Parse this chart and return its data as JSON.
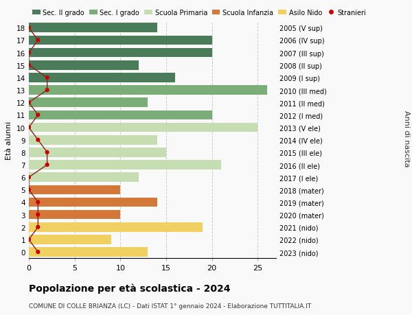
{
  "ages": [
    18,
    17,
    16,
    15,
    14,
    13,
    12,
    11,
    10,
    9,
    8,
    7,
    6,
    5,
    4,
    3,
    2,
    1,
    0
  ],
  "years": [
    "2005 (V sup)",
    "2006 (IV sup)",
    "2007 (III sup)",
    "2008 (II sup)",
    "2009 (I sup)",
    "2010 (III med)",
    "2011 (II med)",
    "2012 (I med)",
    "2013 (V ele)",
    "2014 (IV ele)",
    "2015 (III ele)",
    "2016 (II ele)",
    "2017 (I ele)",
    "2018 (mater)",
    "2019 (mater)",
    "2020 (mater)",
    "2021 (nido)",
    "2022 (nido)",
    "2023 (nido)"
  ],
  "bar_values": [
    14,
    20,
    20,
    12,
    16,
    26,
    13,
    20,
    25,
    14,
    15,
    21,
    12,
    10,
    14,
    10,
    19,
    9,
    13
  ],
  "bar_colors": [
    "#4a7c59",
    "#4a7c59",
    "#4a7c59",
    "#4a7c59",
    "#4a7c59",
    "#7aad78",
    "#7aad78",
    "#7aad78",
    "#c5ddb0",
    "#c5ddb0",
    "#c5ddb0",
    "#c5ddb0",
    "#c5ddb0",
    "#d4783a",
    "#d4783a",
    "#d4783a",
    "#f0d060",
    "#f0d060",
    "#f0d060"
  ],
  "stranieri_values": [
    0,
    1,
    0,
    0,
    2,
    2,
    0,
    1,
    0,
    1,
    2,
    2,
    0,
    0,
    1,
    1,
    1,
    0,
    1
  ],
  "legend_labels": [
    "Sec. II grado",
    "Sec. I grado",
    "Scuola Primaria",
    "Scuola Infanzia",
    "Asilo Nido",
    "Stranieri"
  ],
  "legend_colors": [
    "#4a7c59",
    "#7aad78",
    "#c5ddb0",
    "#d4783a",
    "#f0d060",
    "#cc0000"
  ],
  "stranieri_color": "#cc0000",
  "stranieri_line_color": "#8b2020",
  "title_main": "Popolazione per età scolastica - 2024",
  "title_sub": "COMUNE DI COLLE BRIANZA (LC) - Dati ISTAT 1° gennaio 2024 - Elaborazione TUTTITALIA.IT",
  "ylabel_left": "Età alunni",
  "ylabel_right": "Anni di nascita",
  "xlim": [
    0,
    27
  ],
  "ylim": [
    -0.5,
    18.5
  ],
  "xticks": [
    0,
    5,
    10,
    15,
    20,
    25
  ],
  "bg_color": "#f9f9f9",
  "grid_color": "#cccccc",
  "bar_height": 0.75
}
